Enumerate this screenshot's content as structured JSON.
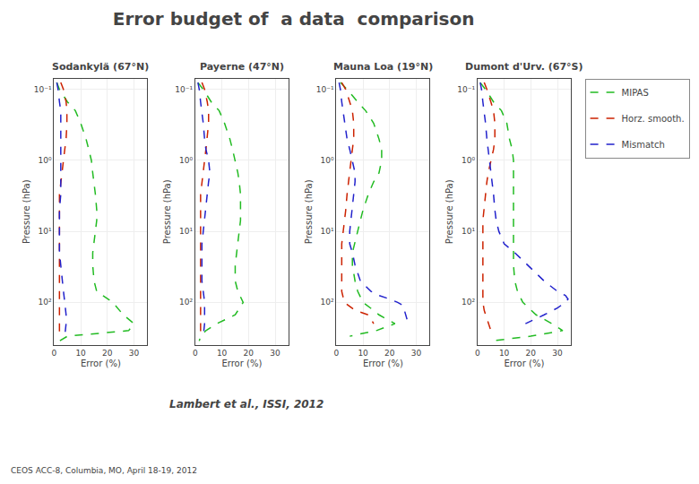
{
  "title": "Error budget of  a data  comparison",
  "subtitle": "Lambert et al., ISSI, 2012",
  "annotations": [
    "CEOS ACC-8, Columbia, MO, April 18-19, 2012"
  ],
  "chart_data": [
    {
      "type": "line",
      "title": "Sodankylä (67°N)",
      "xlabel": "Error (%)",
      "ylabel": "Pressure (hPa)",
      "xlim": [
        0,
        35
      ],
      "xticks": [
        0,
        10,
        20,
        30
      ],
      "ylim": [
        400,
        0.07
      ],
      "yticks": [
        {
          "value": 0.1,
          "label": "10⁻¹"
        },
        {
          "value": 1,
          "label": "10⁰"
        },
        {
          "value": 10,
          "label": "10¹"
        },
        {
          "value": 100,
          "label": "10²"
        }
      ],
      "log": "y",
      "grid": true,
      "legend": "upper right",
      "series": [
        {
          "name": "MIPAS",
          "color": "#22bb22",
          "line_style": "dashed",
          "x": [
            1.0,
            2.0,
            5.0,
            8.0,
            10.0,
            12.0,
            13.0,
            14.0,
            14.5,
            15.0,
            15.5,
            16.0,
            16.0,
            15.5,
            15.0,
            14.5,
            14.5,
            15.0,
            16.0,
            22.0,
            26.0,
            30.0,
            28.0,
            5.0,
            2.0
          ],
          "values": [
            0.08,
            0.1,
            0.15,
            0.2,
            0.3,
            0.5,
            0.7,
            1.0,
            1.5,
            2.0,
            3.0,
            5.0,
            7.0,
            10.0,
            15.0,
            20.0,
            30.0,
            50.0,
            70.0,
            100.0,
            150.0,
            200.0,
            250.0,
            300.0,
            350.0
          ]
        },
        {
          "name": "Horz. smooth.",
          "color": "#cc2200",
          "line_style": "dashed",
          "x": [
            2.5,
            3.5,
            4.5,
            4.8,
            4.8,
            4.5,
            4.0,
            3.5,
            3.0,
            2.5,
            2.0,
            2.0,
            2.0,
            2.0,
            2.0,
            2.0,
            2.0,
            2.0,
            2.0,
            2.0,
            2.0,
            2.0,
            2.0
          ],
          "values": [
            0.08,
            0.1,
            0.15,
            0.2,
            0.3,
            0.5,
            0.7,
            1.0,
            1.5,
            2.0,
            3.0,
            5.0,
            7.0,
            10.0,
            15.0,
            20.0,
            30.0,
            50.0,
            70.0,
            100.0,
            150.0,
            200.0,
            300.0
          ]
        },
        {
          "name": "Mismatch",
          "color": "#2222cc",
          "line_style": "dashed",
          "x": [
            1.0,
            1.5,
            2.0,
            2.5,
            2.5,
            2.5,
            2.5,
            2.5,
            2.5,
            2.5,
            2.5,
            2.0,
            2.0,
            2.0,
            2.0,
            2.0,
            2.5,
            3.0,
            3.5,
            4.0,
            4.5,
            4.5,
            4.0
          ],
          "values": [
            0.08,
            0.1,
            0.15,
            0.2,
            0.3,
            0.5,
            0.7,
            1.0,
            1.5,
            2.0,
            3.0,
            5.0,
            7.0,
            10.0,
            15.0,
            20.0,
            30.0,
            50.0,
            70.0,
            100.0,
            150.0,
            200.0,
            300.0
          ]
        }
      ]
    },
    {
      "type": "line",
      "title": "Payerne (47°N)",
      "xlabel": "Error (%)",
      "ylabel": "Pressure (hPa)",
      "xlim": [
        0,
        35
      ],
      "xticks": [
        0,
        10,
        20,
        30
      ],
      "ylim": [
        400,
        0.07
      ],
      "yticks": [
        {
          "value": 0.1,
          "label": "10⁻¹"
        },
        {
          "value": 1,
          "label": "10⁰"
        },
        {
          "value": 10,
          "label": "10¹"
        },
        {
          "value": 100,
          "label": "10²"
        }
      ],
      "log": "y",
      "grid": true,
      "legend": "upper right",
      "series": [
        {
          "name": "MIPAS",
          "color": "#22bb22",
          "line_style": "dashed",
          "x": [
            1.0,
            3.0,
            6.0,
            9.0,
            11.0,
            13.0,
            14.0,
            15.0,
            16.0,
            16.5,
            17.0,
            17.0,
            17.0,
            16.5,
            16.0,
            15.5,
            15.0,
            15.0,
            16.0,
            18.0,
            15.0,
            8.0,
            4.0,
            2.0,
            1.5
          ],
          "values": [
            0.08,
            0.1,
            0.15,
            0.2,
            0.3,
            0.5,
            0.7,
            1.0,
            1.5,
            2.0,
            3.0,
            5.0,
            7.0,
            10.0,
            15.0,
            20.0,
            30.0,
            50.0,
            70.0,
            100.0,
            150.0,
            200.0,
            250.0,
            300.0,
            350.0
          ]
        },
        {
          "name": "Horz. smooth.",
          "color": "#cc2200",
          "line_style": "dashed",
          "x": [
            2.5,
            3.5,
            4.5,
            5.0,
            5.0,
            4.5,
            4.0,
            3.5,
            3.0,
            2.5,
            2.0,
            2.0,
            2.0,
            2.0,
            2.0,
            2.0,
            2.0,
            2.0,
            2.0,
            2.0,
            2.0,
            2.0
          ],
          "values": [
            0.08,
            0.1,
            0.15,
            0.2,
            0.3,
            0.5,
            0.7,
            1.0,
            1.5,
            2.0,
            3.0,
            5.0,
            7.0,
            10.0,
            15.0,
            20.0,
            30.0,
            50.0,
            70.0,
            100.0,
            200.0,
            300.0
          ]
        },
        {
          "name": "Mismatch",
          "color": "#2222cc",
          "line_style": "dashed",
          "x": [
            1.0,
            1.5,
            2.0,
            2.5,
            3.0,
            3.5,
            4.0,
            5.0,
            5.5,
            5.0,
            4.5,
            4.0,
            3.5,
            3.0,
            2.5,
            2.5,
            2.5,
            2.5,
            3.0,
            3.5,
            3.5,
            3.0
          ],
          "values": [
            0.08,
            0.1,
            0.15,
            0.2,
            0.3,
            0.5,
            0.7,
            1.0,
            1.5,
            2.0,
            3.0,
            5.0,
            7.0,
            10.0,
            15.0,
            20.0,
            30.0,
            50.0,
            70.0,
            100.0,
            200.0,
            300.0
          ]
        }
      ]
    },
    {
      "type": "line",
      "title": "Mauna Loa (19°N)",
      "xlabel": "Error (%)",
      "ylabel": "Pressure (hPa)",
      "xlim": [
        0,
        35
      ],
      "xticks": [
        0,
        10,
        20,
        30
      ],
      "ylim": [
        400,
        0.07
      ],
      "yticks": [
        {
          "value": 0.1,
          "label": "10⁻¹"
        },
        {
          "value": 1,
          "label": "10⁰"
        },
        {
          "value": 10,
          "label": "10¹"
        },
        {
          "value": 100,
          "label": "10²"
        }
      ],
      "log": "y",
      "grid": true,
      "legend": "upper right",
      "series": [
        {
          "name": "MIPAS",
          "color": "#22bb22",
          "line_style": "dashed",
          "x": [
            1.5,
            4.0,
            8.0,
            11.0,
            14.0,
            16.0,
            17.0,
            17.0,
            16.0,
            14.0,
            12.0,
            10.0,
            9.0,
            8.0,
            7.0,
            6.0,
            6.0,
            7.0,
            8.0,
            10.0,
            14.0,
            16.0,
            22.0,
            15.0,
            5.0
          ],
          "values": [
            0.08,
            0.1,
            0.15,
            0.2,
            0.3,
            0.5,
            0.7,
            1.0,
            1.5,
            2.0,
            3.0,
            5.0,
            7.0,
            10.0,
            15.0,
            20.0,
            30.0,
            50.0,
            70.0,
            100.0,
            130.0,
            150.0,
            200.0,
            250.0,
            300.0
          ]
        },
        {
          "name": "Horz. smooth.",
          "color": "#cc2200",
          "line_style": "dashed",
          "x": [
            2.0,
            3.5,
            5.0,
            6.0,
            6.5,
            6.5,
            6.0,
            5.5,
            5.0,
            4.5,
            4.0,
            3.5,
            3.0,
            2.5,
            2.0,
            2.0,
            2.0,
            2.0,
            2.0,
            3.0,
            7.0,
            12.0,
            14.0
          ],
          "values": [
            0.08,
            0.1,
            0.15,
            0.2,
            0.3,
            0.5,
            0.7,
            1.0,
            1.5,
            2.0,
            3.0,
            5.0,
            7.0,
            10.0,
            15.0,
            20.0,
            30.0,
            50.0,
            70.0,
            100.0,
            130.0,
            150.0,
            200.0
          ]
        },
        {
          "name": "Mismatch",
          "color": "#2222cc",
          "line_style": "dashed",
          "x": [
            1.0,
            1.5,
            2.0,
            2.5,
            3.0,
            4.0,
            5.0,
            6.0,
            7.0,
            7.0,
            6.5,
            6.0,
            5.5,
            5.0,
            5.0,
            6.0,
            7.0,
            9.0,
            13.0,
            16.0,
            20.0,
            23.0,
            25.0,
            26.0,
            27.0
          ],
          "values": [
            0.08,
            0.1,
            0.15,
            0.2,
            0.3,
            0.5,
            0.7,
            1.0,
            1.5,
            2.0,
            3.0,
            5.0,
            7.0,
            10.0,
            15.0,
            20.0,
            30.0,
            50.0,
            70.0,
            80.0,
            90.0,
            100.0,
            110.0,
            150.0,
            200.0
          ]
        }
      ]
    },
    {
      "type": "line",
      "title": "Dumont d'Urv. (67°S)",
      "xlabel": "Error (%)",
      "ylabel": "Pressure (hPa)",
      "xlim": [
        0,
        35
      ],
      "xticks": [
        0,
        10,
        20,
        30
      ],
      "ylim": [
        400,
        0.07
      ],
      "yticks": [
        {
          "value": 0.1,
          "label": "10⁻¹"
        },
        {
          "value": 1,
          "label": "10⁰"
        },
        {
          "value": 10,
          "label": "10¹"
        },
        {
          "value": 100,
          "label": "10²"
        }
      ],
      "log": "y",
      "grid": true,
      "legend": "upper right",
      "series": [
        {
          "name": "MIPAS",
          "color": "#22bb22",
          "line_style": "dashed",
          "x": [
            1.0,
            3.0,
            6.0,
            9.0,
            11.0,
            12.0,
            13.0,
            13.5,
            13.5,
            13.5,
            13.5,
            13.5,
            13.5,
            13.5,
            13.5,
            13.5,
            13.5,
            14.0,
            15.0,
            17.0,
            22.0,
            28.0,
            32.0,
            20.0,
            5.0
          ],
          "values": [
            0.08,
            0.1,
            0.15,
            0.2,
            0.3,
            0.5,
            0.7,
            1.0,
            1.5,
            2.0,
            3.0,
            5.0,
            7.0,
            10.0,
            15.0,
            20.0,
            30.0,
            50.0,
            70.0,
            100.0,
            150.0,
            200.0,
            250.0,
            300.0,
            350.0
          ]
        },
        {
          "name": "Horz. smooth.",
          "color": "#cc2200",
          "line_style": "dashed",
          "x": [
            2.5,
            3.5,
            5.0,
            6.0,
            6.5,
            6.5,
            6.0,
            5.0,
            4.0,
            3.5,
            3.0,
            2.5,
            2.0,
            2.0,
            2.0,
            2.0,
            2.0,
            2.0,
            2.0,
            2.0,
            2.5,
            3.0,
            4.0,
            5.0
          ],
          "values": [
            0.08,
            0.1,
            0.15,
            0.2,
            0.3,
            0.5,
            0.7,
            1.0,
            1.5,
            2.0,
            3.0,
            5.0,
            7.0,
            10.0,
            15.0,
            20.0,
            30.0,
            50.0,
            70.0,
            100.0,
            130.0,
            150.0,
            200.0,
            250.0
          ]
        },
        {
          "name": "Mismatch",
          "color": "#2222cc",
          "line_style": "dashed",
          "x": [
            1.0,
            1.5,
            2.0,
            2.5,
            3.0,
            3.5,
            4.0,
            4.5,
            5.0,
            5.5,
            6.0,
            6.5,
            7.0,
            8.0,
            10.0,
            14.0,
            19.0,
            25.0,
            30.0,
            33.0,
            34.0,
            33.0,
            30.0,
            25.0,
            18.0
          ],
          "values": [
            0.08,
            0.1,
            0.15,
            0.2,
            0.3,
            0.5,
            0.7,
            1.0,
            1.5,
            2.0,
            3.0,
            5.0,
            7.0,
            10.0,
            15.0,
            20.0,
            30.0,
            50.0,
            70.0,
            80.0,
            90.0,
            100.0,
            120.0,
            150.0,
            200.0
          ]
        }
      ]
    }
  ]
}
